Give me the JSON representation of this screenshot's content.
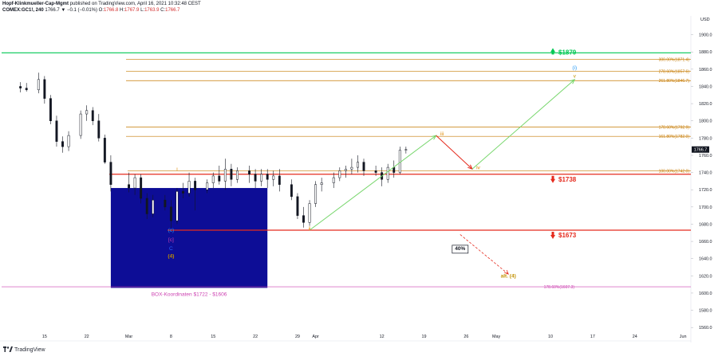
{
  "header": {
    "line1_author": "Hopf-Klinkmueller-Cap-Mgmt",
    "line1_rest": "published on TradingView.com, April 16, 2021 10:32:48 CEST",
    "symbol": "COMEX:GC1!, 240",
    "ohlc_label": "1766.7 ▼ −0.1 (−0.01%) O:",
    "o_val": "1766.8",
    "h_label": " H:",
    "h_val": "1767.9",
    "l_label": " L:",
    "l_val": "1763.9",
    "c_label": " C:",
    "c_val": "1766.7"
  },
  "footer": {
    "brand": "TradingView",
    "logo_icon": "tradingview-logo-icon"
  },
  "colors": {
    "up": "#ffffff",
    "down": "#131722",
    "green_line": "#00c853",
    "orange_line": "#c67a00",
    "red_line": "#e52b1e",
    "wave_arrow": "#76d66b",
    "box": "#0d0d96",
    "magenta": "#cc3fb0"
  },
  "chart_data": {
    "type": "candlestick",
    "y_unit": "USD",
    "ylim": [
      1550,
      1920
    ],
    "y_ticks": [
      1560.0,
      1580.0,
      1600.0,
      1620.0,
      1640.0,
      1660.0,
      1680.0,
      1700.0,
      1720.0,
      1740.0,
      1760.0,
      1780.0,
      1800.0,
      1820.0,
      1840.0,
      1860.0,
      1880.0,
      1900.0
    ],
    "x_ticks": [
      "15",
      "22",
      "Mar",
      "8",
      "15",
      "22",
      "29",
      "Apr",
      "12",
      "19",
      "26",
      "May",
      "10",
      "17",
      "24",
      "Jun"
    ],
    "last_price": "1766.7",
    "grid": false,
    "candles": [
      [
        "Feb 11",
        1840,
        1845,
        1833,
        1838
      ],
      [
        "Feb 12",
        1838,
        1844,
        1834,
        1836
      ],
      [
        "Feb 14",
        1836,
        1856,
        1832,
        1848
      ],
      [
        "Feb 15",
        1848,
        1852,
        1820,
        1826
      ],
      [
        "Feb 16",
        1826,
        1830,
        1796,
        1800
      ],
      [
        "Feb 17",
        1800,
        1806,
        1770,
        1776
      ],
      [
        "Feb 18",
        1776,
        1782,
        1763,
        1770
      ],
      [
        "Feb 19",
        1770,
        1788,
        1765,
        1783
      ],
      [
        "Feb 21",
        1783,
        1812,
        1779,
        1808
      ],
      [
        "Feb 22",
        1808,
        1818,
        1800,
        1812
      ],
      [
        "Feb 23",
        1812,
        1816,
        1795,
        1800
      ],
      [
        "Feb 24",
        1800,
        1808,
        1776,
        1780
      ],
      [
        "Feb 25",
        1780,
        1784,
        1750,
        1752
      ],
      [
        "Feb 26",
        1752,
        1760,
        1718,
        1726
      ],
      [
        "Mar 1",
        1726,
        1740,
        1717,
        1722
      ],
      [
        "Mar 2",
        1722,
        1738,
        1714,
        1734
      ],
      [
        "Mar 3",
        1734,
        1738,
        1704,
        1710
      ],
      [
        "Mar 4",
        1710,
        1716,
        1686,
        1692
      ],
      [
        "Mar 5",
        1692,
        1714,
        1688,
        1708
      ],
      [
        "Mar 7",
        1708,
        1714,
        1696,
        1700
      ],
      [
        "Mar 8",
        1700,
        1708,
        1676,
        1684
      ],
      [
        "Mar 9",
        1684,
        1722,
        1680,
        1718
      ],
      [
        "Mar 10",
        1718,
        1728,
        1710,
        1716
      ],
      [
        "Mar 11",
        1716,
        1740,
        1712,
        1730
      ],
      [
        "Mar 12",
        1730,
        1734,
        1696,
        1720
      ],
      [
        "Mar 14",
        1720,
        1732,
        1716,
        1728
      ],
      [
        "Mar 15",
        1728,
        1740,
        1722,
        1736
      ],
      [
        "Mar 16",
        1736,
        1748,
        1726,
        1730
      ],
      [
        "Mar 17",
        1730,
        1756,
        1720,
        1744
      ],
      [
        "Mar 18",
        1744,
        1750,
        1724,
        1732
      ],
      [
        "Mar 19",
        1732,
        1746,
        1728,
        1742
      ],
      [
        "Mar 21",
        1742,
        1748,
        1728,
        1738
      ],
      [
        "Mar 22",
        1738,
        1744,
        1722,
        1730
      ],
      [
        "Mar 23",
        1730,
        1744,
        1724,
        1738
      ],
      [
        "Mar 24",
        1738,
        1744,
        1722,
        1732
      ],
      [
        "Mar 25",
        1732,
        1742,
        1724,
        1736
      ],
      [
        "Mar 26",
        1736,
        1744,
        1718,
        1726
      ],
      [
        "Mar 28",
        1726,
        1732,
        1708,
        1712
      ],
      [
        "Mar 29",
        1712,
        1716,
        1686,
        1690
      ],
      [
        "Mar 30",
        1690,
        1700,
        1676,
        1682
      ],
      [
        "Mar 31",
        1682,
        1708,
        1678,
        1704
      ],
      [
        "Apr 1",
        1704,
        1730,
        1700,
        1726
      ],
      [
        "Apr 2",
        1726,
        1734,
        1718,
        1728
      ],
      [
        "Apr 4",
        1728,
        1740,
        1722,
        1734
      ],
      [
        "Apr 5",
        1734,
        1746,
        1730,
        1742
      ],
      [
        "Apr 6",
        1742,
        1748,
        1734,
        1744
      ],
      [
        "Apr 7",
        1744,
        1756,
        1738,
        1746
      ],
      [
        "Apr 8",
        1746,
        1760,
        1740,
        1752
      ],
      [
        "Apr 9",
        1752,
        1756,
        1736,
        1742
      ],
      [
        "Apr 11",
        1742,
        1748,
        1736,
        1740
      ],
      [
        "Apr 12",
        1740,
        1746,
        1724,
        1732
      ],
      [
        "Apr 13",
        1732,
        1750,
        1728,
        1746
      ],
      [
        "Apr 14",
        1746,
        1754,
        1734,
        1740
      ],
      [
        "Apr 15",
        1740,
        1770,
        1738,
        1766
      ],
      [
        "Apr 16",
        1766,
        1770,
        1762,
        1766.7
      ]
    ],
    "horizontal_levels": [
      {
        "price": 1879,
        "label": "$1879",
        "kind": "green"
      },
      {
        "price": 1871.4,
        "label": "300.00%(1871.4)",
        "kind": "fib"
      },
      {
        "price": 1857.6,
        "label": "278.60%(1857.6)",
        "kind": "fib"
      },
      {
        "price": 1846.7,
        "label": "261.80%(1846.7)",
        "kind": "fib"
      },
      {
        "price": 1792.9,
        "label": "178.60%(1792.9)",
        "kind": "fib"
      },
      {
        "price": 1782.0,
        "label": "161.80%(1782.0)",
        "kind": "fib"
      },
      {
        "price": 1742.0,
        "label": "100.00%(1742.0)",
        "kind": "fib"
      },
      {
        "price": 1738,
        "label": "$1738",
        "kind": "red"
      },
      {
        "price": 1673,
        "label": "$1673",
        "kind": "red"
      },
      {
        "price": 1607.3,
        "label": "178.60%(1607.3)",
        "kind": "magenta"
      }
    ],
    "box": {
      "top": 1722,
      "bottom": 1606,
      "from": "Feb 26",
      "to": "Mar 24",
      "label": "BOX-Koordinaten $1722 - $1606"
    },
    "wave_labels": [
      {
        "text": "i",
        "date": "Mar 9",
        "price": 1742
      },
      {
        "text": "ii",
        "date": "Mar 31",
        "price": 1673
      },
      {
        "text": "iii",
        "date": "Apr 22",
        "price": 1783
      },
      {
        "text": "iv",
        "date": "Apr 28",
        "price": 1744
      },
      {
        "text": "v",
        "date": "May 14",
        "price": 1850
      },
      {
        "text": "(i)",
        "date": "May 14",
        "price": 1860
      },
      {
        "text": "(c)",
        "date": "Mar 8",
        "price": 1671
      },
      {
        "text": "[c]",
        "date": "Mar 8",
        "price": 1660
      },
      {
        "text": "C",
        "date": "Mar 8",
        "price": 1650
      },
      {
        "text": "(4)",
        "date": "Mar 8",
        "price": 1641
      },
      {
        "text": "alt. (4)",
        "date": "May 3",
        "price": 1618
      },
      {
        "text": "40%",
        "date": "Apr 25",
        "price": 1650
      }
    ],
    "projection_path": [
      {
        "date": "Mar 31",
        "price": 1673
      },
      {
        "date": "Apr 21",
        "price": 1783
      },
      {
        "date": "Apr 27",
        "price": 1744
      },
      {
        "date": "May 14",
        "price": 1848
      }
    ]
  }
}
